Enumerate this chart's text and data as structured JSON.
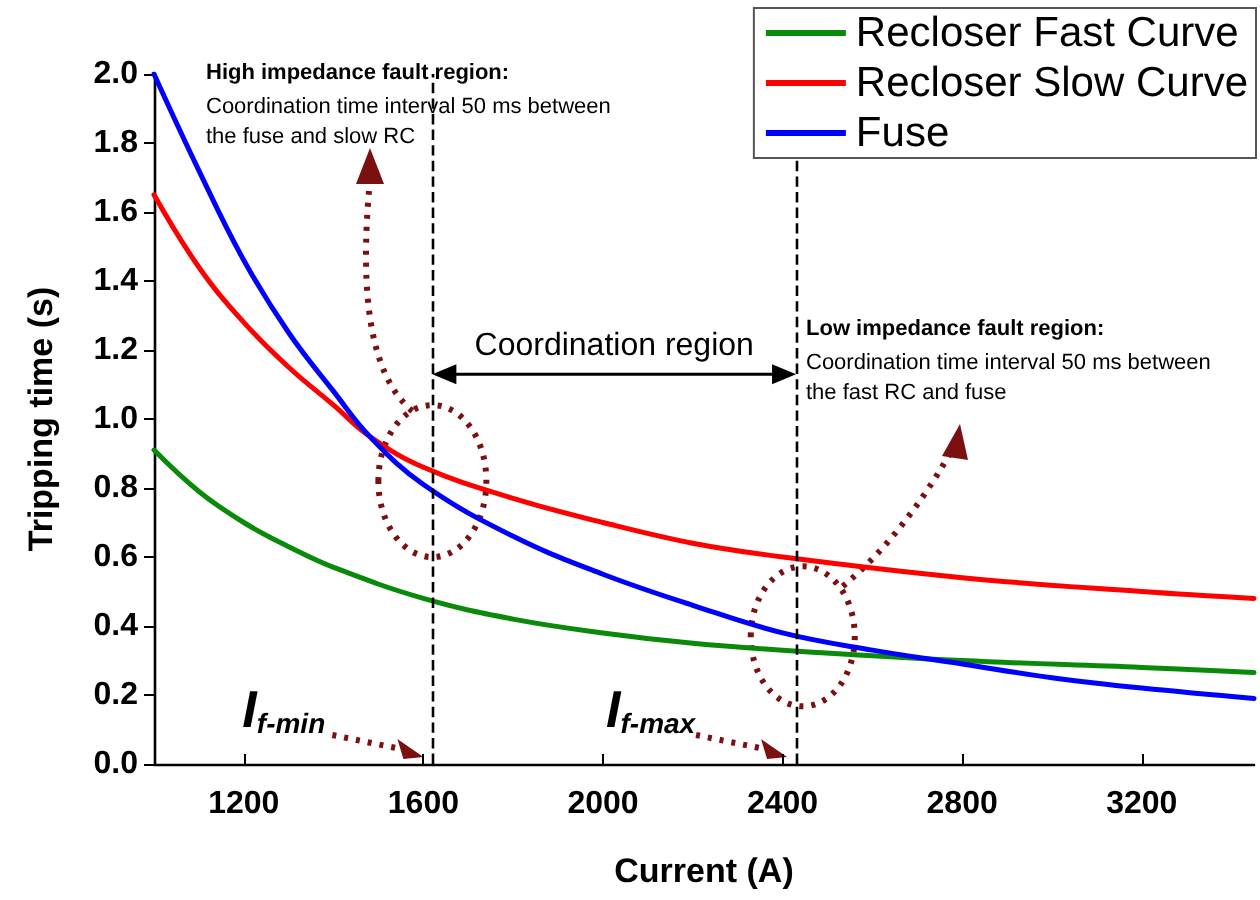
{
  "chart_data": {
    "type": "line",
    "xlabel": "Current (A)",
    "ylabel": "Tripping time (s)",
    "xlim": [
      1000,
      3450
    ],
    "xticks": [
      1200,
      1600,
      2000,
      2400,
      2800,
      3200
    ],
    "ylim": [
      0,
      2
    ],
    "yticks": [
      {
        "value": 0,
        "label": "0.0"
      },
      {
        "value": 0.2,
        "label": "0.2"
      },
      {
        "value": 0.4,
        "label": "0.4"
      },
      {
        "value": 0.6,
        "label": "0.6"
      },
      {
        "value": 0.8,
        "label": "0.8"
      },
      {
        "value": 1,
        "label": "1.0"
      },
      {
        "value": 1.2,
        "label": "1.2"
      },
      {
        "value": 1.4,
        "label": "1.4"
      },
      {
        "value": 1.6,
        "label": "1.6"
      },
      {
        "value": 1.8,
        "label": "1.8"
      },
      {
        "value": 2,
        "label": "2.0"
      }
    ],
    "series": [
      {
        "name": "Recloser Fast Curve",
        "color": "#0a8a0a",
        "x": [
          1000,
          1100,
          1200,
          1300,
          1400,
          1600,
          1800,
          2000,
          2200,
          2400,
          2800,
          3200,
          3450
        ],
        "values": [
          0.91,
          0.79,
          0.7,
          0.63,
          0.57,
          0.48,
          0.42,
          0.38,
          0.35,
          0.33,
          0.3,
          0.28,
          0.265
        ]
      },
      {
        "name": "Recloser Slow Curve",
        "color": "#ff0000",
        "x": [
          1000,
          1100,
          1200,
          1300,
          1400,
          1480,
          1600,
          1800,
          2000,
          2200,
          2400,
          2800,
          3200,
          3450
        ],
        "values": [
          1.65,
          1.44,
          1.28,
          1.15,
          1.04,
          0.95,
          0.86,
          0.77,
          0.7,
          0.64,
          0.6,
          0.54,
          0.5,
          0.48
        ]
      },
      {
        "name": "Fuse",
        "color": "#0000ff",
        "x": [
          1000,
          1100,
          1200,
          1300,
          1400,
          1480,
          1600,
          1800,
          2000,
          2200,
          2400,
          2600,
          2800,
          3000,
          3200,
          3450
        ],
        "values": [
          2.0,
          1.72,
          1.46,
          1.25,
          1.08,
          0.95,
          0.81,
          0.66,
          0.55,
          0.46,
          0.38,
          0.33,
          0.29,
          0.25,
          0.22,
          0.19
        ]
      }
    ],
    "ref_lines": [
      {
        "axis": "x",
        "value": 1620,
        "label": "I$_{f-min}$",
        "color": "#000000",
        "line_style": "dashed"
      },
      {
        "axis": "x",
        "value": 2430,
        "label": "I$_{f-max}$",
        "color": "#000000",
        "line_style": "dashed"
      }
    ],
    "annotations": [
      "Coordination region",
      "High impedance fault region:",
      "Coordination time interval 50 ms between\nthe fuse and slow RC",
      "Low impedance fault region:",
      "Coordination time interval 50 ms between\nthe fast RC and fuse"
    ],
    "legend": "top right",
    "grid": false,
    "marker": "none",
    "line_style": "solid"
  }
}
